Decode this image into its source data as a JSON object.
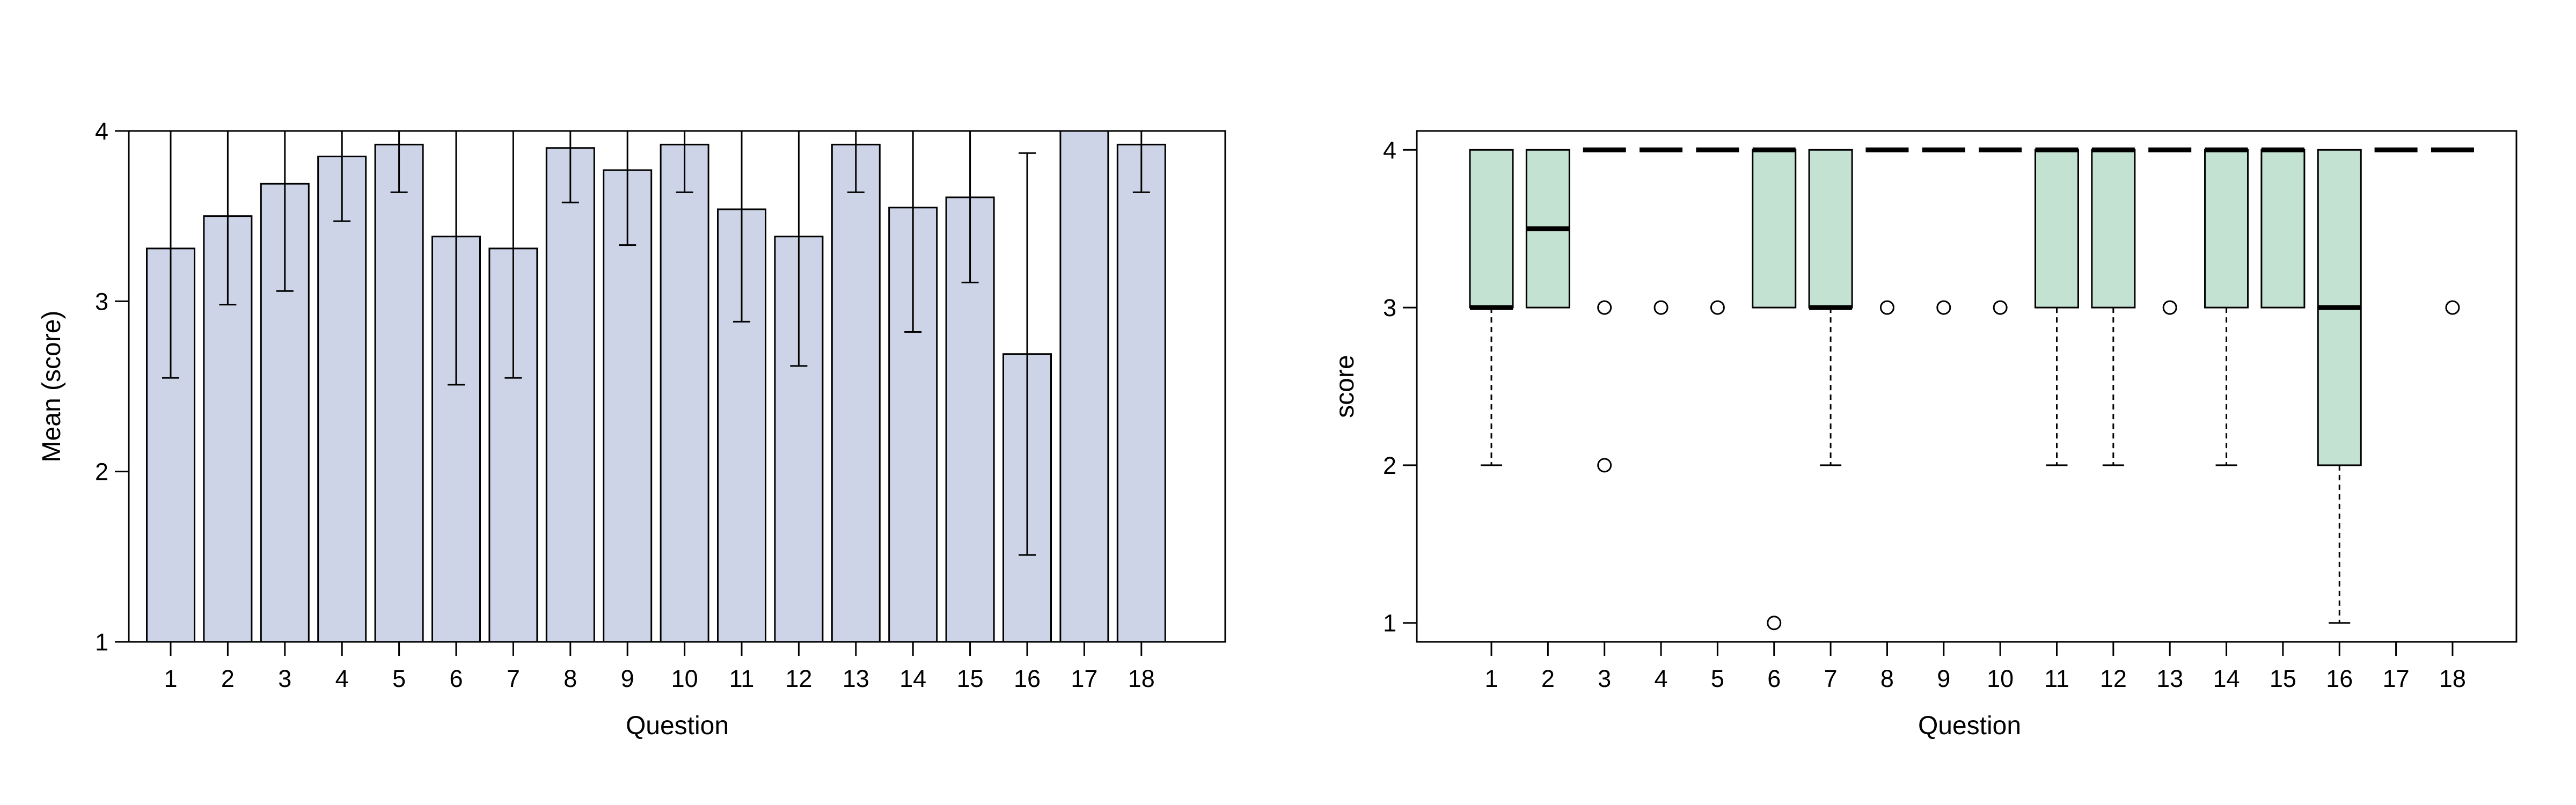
{
  "chart_data": [
    {
      "type": "bar",
      "title": "",
      "xlabel": "Question",
      "ylabel": "Mean (score)",
      "ylim": [
        1,
        4
      ],
      "yticks": [
        1,
        2,
        3,
        4
      ],
      "categories": [
        "1",
        "2",
        "3",
        "4",
        "5",
        "6",
        "7",
        "8",
        "9",
        "10",
        "11",
        "12",
        "13",
        "14",
        "15",
        "16",
        "17",
        "18"
      ],
      "values": [
        3.31,
        3.5,
        3.69,
        3.85,
        3.92,
        3.38,
        3.31,
        3.9,
        3.77,
        3.92,
        3.54,
        3.38,
        3.92,
        3.55,
        3.61,
        2.69,
        4.0,
        3.92
      ],
      "error_low": [
        2.55,
        2.98,
        3.06,
        3.47,
        3.64,
        2.51,
        2.55,
        3.58,
        3.33,
        3.64,
        2.88,
        2.62,
        3.64,
        2.82,
        3.11,
        1.51,
        4.0,
        3.64
      ],
      "error_high": [
        4.0,
        4.0,
        4.0,
        4.0,
        4.0,
        4.0,
        4.0,
        4.0,
        4.0,
        4.0,
        4.0,
        4.0,
        4.0,
        4.0,
        4.0,
        3.87,
        4.0,
        4.0
      ],
      "bar_color": "#CDD4E8",
      "grid": false,
      "legend": "none"
    },
    {
      "type": "box",
      "title": "",
      "xlabel": "Question",
      "ylabel": "score",
      "ylim": [
        1,
        4
      ],
      "yticks": [
        1,
        2,
        3,
        4
      ],
      "categories": [
        "1",
        "2",
        "3",
        "4",
        "5",
        "6",
        "7",
        "8",
        "9",
        "10",
        "11",
        "12",
        "13",
        "14",
        "15",
        "16",
        "17",
        "18"
      ],
      "boxes": [
        {
          "q1": 3,
          "median": 3,
          "q3": 4,
          "whisker_low": 2,
          "whisker_high": 4,
          "outliers": []
        },
        {
          "q1": 3,
          "median": 3.5,
          "q3": 4,
          "whisker_low": 3,
          "whisker_high": 4,
          "outliers": []
        },
        {
          "q1": 4,
          "median": 4,
          "q3": 4,
          "whisker_low": 4,
          "whisker_high": 4,
          "outliers": [
            3,
            2
          ]
        },
        {
          "q1": 4,
          "median": 4,
          "q3": 4,
          "whisker_low": 4,
          "whisker_high": 4,
          "outliers": [
            3
          ]
        },
        {
          "q1": 4,
          "median": 4,
          "q3": 4,
          "whisker_low": 4,
          "whisker_high": 4,
          "outliers": [
            3
          ]
        },
        {
          "q1": 3,
          "median": 4,
          "q3": 4,
          "whisker_low": 3,
          "whisker_high": 4,
          "outliers": [
            1
          ]
        },
        {
          "q1": 3,
          "median": 3,
          "q3": 4,
          "whisker_low": 2,
          "whisker_high": 4,
          "outliers": []
        },
        {
          "q1": 4,
          "median": 4,
          "q3": 4,
          "whisker_low": 4,
          "whisker_high": 4,
          "outliers": [
            3
          ]
        },
        {
          "q1": 4,
          "median": 4,
          "q3": 4,
          "whisker_low": 4,
          "whisker_high": 4,
          "outliers": [
            3
          ]
        },
        {
          "q1": 4,
          "median": 4,
          "q3": 4,
          "whisker_low": 4,
          "whisker_high": 4,
          "outliers": [
            3
          ]
        },
        {
          "q1": 3,
          "median": 4,
          "q3": 4,
          "whisker_low": 2,
          "whisker_high": 4,
          "outliers": []
        },
        {
          "q1": 3,
          "median": 4,
          "q3": 4,
          "whisker_low": 2,
          "whisker_high": 4,
          "outliers": []
        },
        {
          "q1": 4,
          "median": 4,
          "q3": 4,
          "whisker_low": 4,
          "whisker_high": 4,
          "outliers": [
            3
          ]
        },
        {
          "q1": 3,
          "median": 4,
          "q3": 4,
          "whisker_low": 2,
          "whisker_high": 4,
          "outliers": []
        },
        {
          "q1": 3,
          "median": 4,
          "q3": 4,
          "whisker_low": 3,
          "whisker_high": 4,
          "outliers": []
        },
        {
          "q1": 2,
          "median": 3,
          "q3": 4,
          "whisker_low": 1,
          "whisker_high": 4,
          "outliers": []
        },
        {
          "q1": 4,
          "median": 4,
          "q3": 4,
          "whisker_low": 4,
          "whisker_high": 4,
          "outliers": []
        },
        {
          "q1": 4,
          "median": 4,
          "q3": 4,
          "whisker_low": 4,
          "whisker_high": 4,
          "outliers": [
            3
          ]
        }
      ],
      "box_color": "#C4E2D2",
      "grid": false,
      "legend": "none"
    }
  ]
}
